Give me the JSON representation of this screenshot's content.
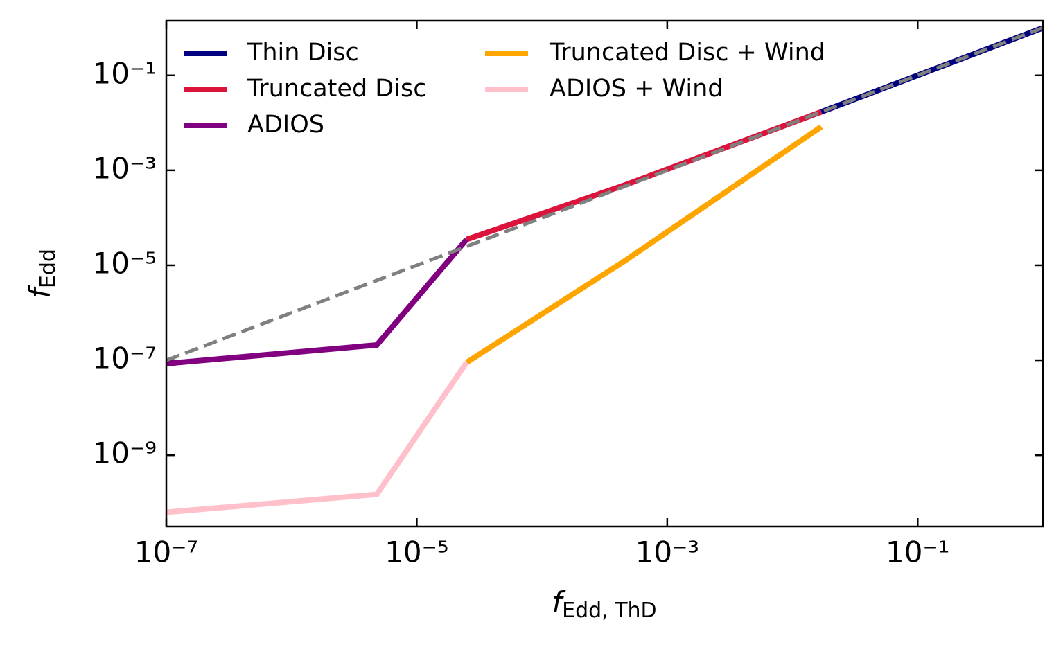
{
  "chart_data": {
    "type": "line",
    "xlabel": [
      "f",
      "Edd, ThD"
    ],
    "ylabel": [
      "f",
      "Edd"
    ],
    "xscale": "log",
    "yscale": "log",
    "xlim": [
      1e-07,
      1
    ],
    "ylim": [
      3.16e-11,
      1.41
    ],
    "xticks": [
      {
        "value": 1e-07,
        "label": "10⁻⁷"
      },
      {
        "value": 1e-05,
        "label": "10⁻⁵"
      },
      {
        "value": 0.001,
        "label": "10⁻³"
      },
      {
        "value": 0.1,
        "label": "10⁻¹"
      }
    ],
    "yticks": [
      {
        "value": 1e-09,
        "label": "10⁻⁹"
      },
      {
        "value": 1e-07,
        "label": "10⁻⁷"
      },
      {
        "value": 1e-05,
        "label": "10⁻⁵"
      },
      {
        "value": 0.001,
        "label": "10⁻³"
      },
      {
        "value": 0.1,
        "label": "10⁻¹"
      }
    ],
    "grid": false,
    "legend_loc": "upper left",
    "legend_columns": 2,
    "series": [
      {
        "name": "Thin Disc",
        "color": "#000080",
        "x": [
          0.017,
          1
        ],
        "values": [
          0.017,
          1
        ]
      },
      {
        "name": "Truncated Disc",
        "color": "#dc143c",
        "x": [
          2.5e-05,
          0.00045,
          0.017
        ],
        "values": [
          3.5e-05,
          0.00048,
          0.017
        ]
      },
      {
        "name": "ADIOS",
        "color": "#800080",
        "x": [
          1e-07,
          4.8e-06,
          2.5e-05
        ],
        "values": [
          8.5e-08,
          2.1e-07,
          3.5e-05
        ]
      },
      {
        "name": "Truncated Disc + Wind",
        "color": "#ffa500",
        "x": [
          2.5e-05,
          0.00045,
          0.017
        ],
        "values": [
          9e-08,
          1.2e-05,
          0.0083
        ]
      },
      {
        "name": "ADIOS + Wind",
        "color": "#ffc0cb",
        "x": [
          1e-07,
          4.8e-06,
          2.5e-05
        ],
        "values": [
          6.3e-11,
          1.5e-10,
          9e-08
        ]
      },
      {
        "color": "#808080",
        "linestyle": "dashed",
        "x": [
          1e-07,
          1
        ],
        "values": [
          1e-07,
          1
        ]
      }
    ]
  }
}
